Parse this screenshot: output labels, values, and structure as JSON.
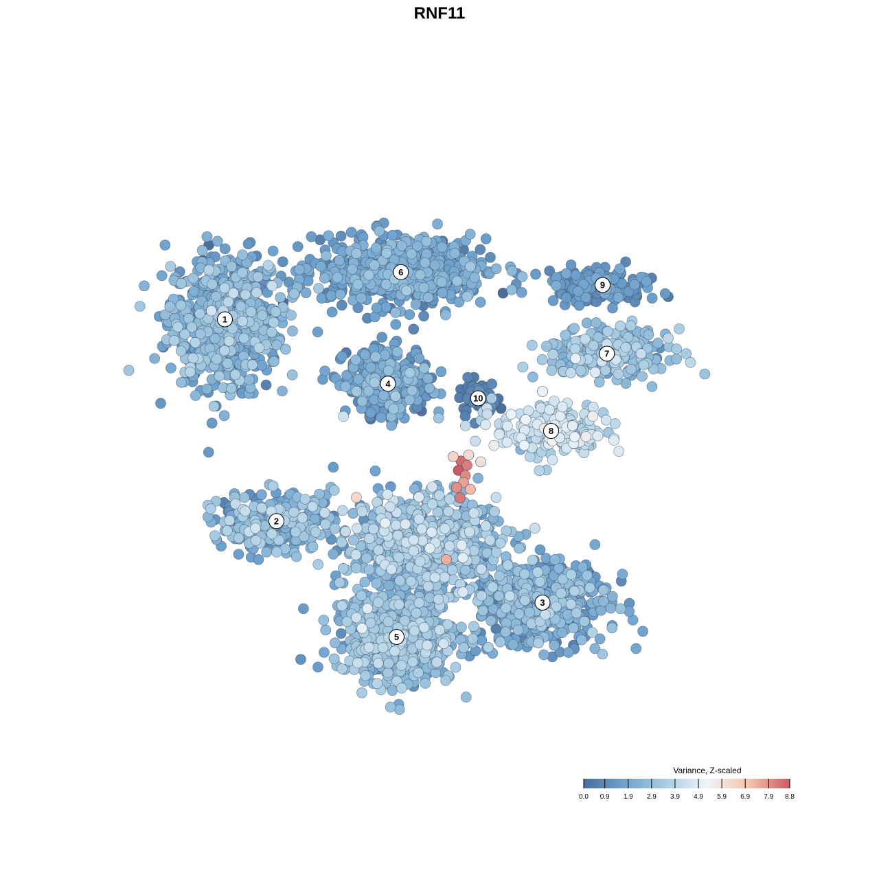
{
  "chart_data": {
    "type": "scatter",
    "title": "RNF11",
    "xlabel": "",
    "ylabel": "",
    "axes": "none",
    "grid": false,
    "legend_placement": "bottom-right",
    "color_legend": {
      "title": "Variance, Z-scaled",
      "min": 0.0,
      "max": 8.8,
      "ticks": [
        "0.0",
        "0.9",
        "1.9",
        "2.9",
        "3.9",
        "4.9",
        "5.9",
        "6.9",
        "7.9",
        "8.8"
      ],
      "colors": [
        "#4a6e9c",
        "#6fa3cf",
        "#a9cde3",
        "#eef4f9",
        "#f6c4ae",
        "#cc5a63"
      ]
    },
    "xlim": [
      -40,
      40
    ],
    "ylim": [
      -40,
      40
    ],
    "clusters": [
      {
        "label": "1",
        "x": -25.0,
        "y": 14.0,
        "sx": 6.0,
        "sy": 7.0,
        "n": 700,
        "mean": 2.1,
        "sd": 0.8
      },
      {
        "label": "6",
        "x": -4.5,
        "y": 19.5,
        "sx": 9.0,
        "sy": 3.5,
        "n": 650,
        "mean": 1.7,
        "sd": 0.6
      },
      {
        "label": "4",
        "x": -6.0,
        "y": 6.5,
        "sx": 4.5,
        "sy": 3.5,
        "n": 320,
        "mean": 1.6,
        "sd": 0.8
      },
      {
        "label": "10",
        "x": 4.5,
        "y": 4.8,
        "sx": 2.0,
        "sy": 1.8,
        "n": 60,
        "mean": 0.5,
        "sd": 0.3
      },
      {
        "label": "9",
        "x": 19.0,
        "y": 18.0,
        "sx": 6.0,
        "sy": 1.8,
        "n": 150,
        "mean": 1.3,
        "sd": 0.4
      },
      {
        "label": "7",
        "x": 19.5,
        "y": 10.0,
        "sx": 6.5,
        "sy": 2.5,
        "n": 250,
        "mean": 2.8,
        "sd": 0.7
      },
      {
        "label": "8",
        "x": 13.0,
        "y": 1.0,
        "sx": 6.0,
        "sy": 3.0,
        "n": 200,
        "mean": 4.1,
        "sd": 0.6
      },
      {
        "label": "2",
        "x": -19.0,
        "y": -9.5,
        "sx": 6.0,
        "sy": 3.0,
        "n": 300,
        "mean": 2.3,
        "sd": 0.9
      },
      {
        "label": "3",
        "x": 12.0,
        "y": -19.0,
        "sx": 7.0,
        "sy": 4.5,
        "n": 500,
        "mean": 2.0,
        "sd": 0.8
      },
      {
        "label": "5",
        "x": -5.0,
        "y": -23.0,
        "sx": 6.5,
        "sy": 5.0,
        "n": 600,
        "mean": 2.6,
        "sd": 0.7
      },
      {
        "label": "",
        "x": -2.0,
        "y": -12.0,
        "sx": 8.0,
        "sy": 5.0,
        "n": 700,
        "mean": 2.9,
        "sd": 0.8
      }
    ],
    "highlight_points": [
      {
        "x": 2.5,
        "y": -2.5,
        "value": 8.5
      },
      {
        "x": 3.2,
        "y": -3.0,
        "value": 8.2
      },
      {
        "x": 2.2,
        "y": -3.6,
        "value": 8.8
      },
      {
        "x": 3.0,
        "y": -4.2,
        "value": 8.0
      },
      {
        "x": 2.8,
        "y": -5.0,
        "value": 7.6
      },
      {
        "x": 2.0,
        "y": -5.6,
        "value": 7.9
      },
      {
        "x": 3.6,
        "y": -5.8,
        "value": 7.2
      },
      {
        "x": 2.4,
        "y": -6.8,
        "value": 8.3
      },
      {
        "x": 1.6,
        "y": -2.0,
        "value": 6.5
      },
      {
        "x": 3.4,
        "y": -1.8,
        "value": 6.2
      },
      {
        "x": 4.8,
        "y": -2.6,
        "value": 6.0
      },
      {
        "x": 0.8,
        "y": -14.0,
        "value": 7.4
      },
      {
        "x": 12.0,
        "y": 5.6,
        "value": 5.2
      },
      {
        "x": 15.5,
        "y": 1.6,
        "value": 5.0
      },
      {
        "x": 14.0,
        "y": 0.2,
        "value": 4.9
      }
    ]
  }
}
